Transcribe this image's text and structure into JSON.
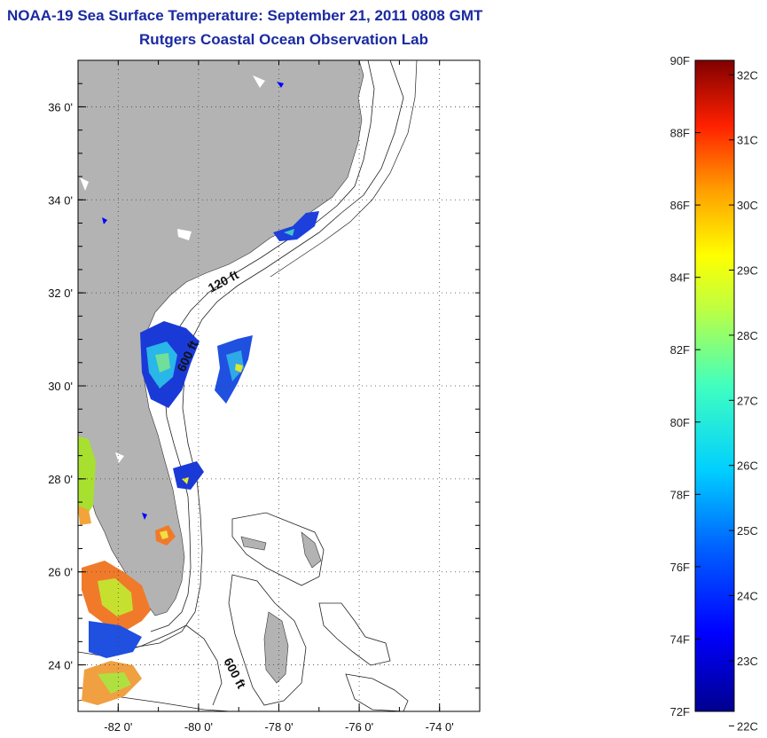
{
  "title": "NOAA-19 Sea Surface Temperature:  September 21, 2011 0808 GMT",
  "subtitle": "Rutgers Coastal Ocean Observation Lab",
  "map": {
    "lon_range": [
      -83,
      -73
    ],
    "lat_range": [
      23,
      37
    ],
    "x_ticks": [
      "-82 0'",
      "-80 0'",
      "-78 0'",
      "-76 0'",
      "-74 0'"
    ],
    "x_tick_values": [
      -82,
      -80,
      -78,
      -76,
      -74
    ],
    "y_ticks": [
      "36 0'",
      "34 0'",
      "32 0'",
      "30 0'",
      "28 0'",
      "26 0'",
      "24 0'"
    ],
    "y_tick_values": [
      36,
      34,
      32,
      30,
      28,
      26,
      24
    ],
    "grid": "dotted",
    "land_color": "#b3b3b3",
    "no_data_color": "#ffffff",
    "contour_labels": [
      "120 ft",
      "600 ft",
      "600 ft"
    ]
  },
  "colorbar": {
    "f_labels": [
      "90F",
      "88F",
      "86F",
      "84F",
      "82F",
      "80F",
      "78F",
      "76F",
      "74F",
      "72F"
    ],
    "f_values": [
      90,
      88,
      86,
      84,
      82,
      80,
      78,
      76,
      74,
      72
    ],
    "c_labels": [
      "32C",
      "31C",
      "30C",
      "29C",
      "28C",
      "27C",
      "26C",
      "25C",
      "24C",
      "23C",
      "22C"
    ],
    "c_values": [
      32,
      31,
      30,
      29,
      28,
      27,
      26,
      25,
      24,
      23,
      22
    ],
    "range_f": [
      72,
      90
    ]
  }
}
